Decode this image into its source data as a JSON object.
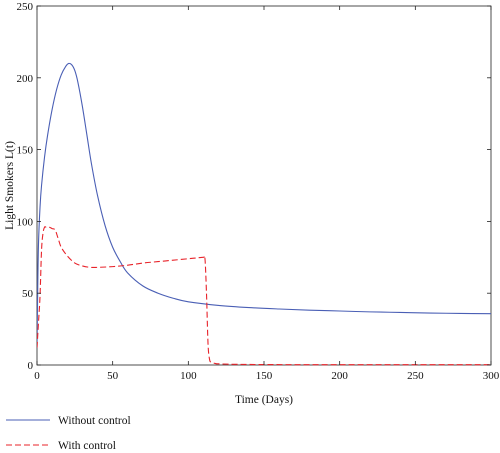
{
  "chart_data": {
    "type": "line",
    "title": "",
    "xlabel": "Time (Days)",
    "ylabel": "Light Smokers L(t)",
    "xlim": [
      0,
      300
    ],
    "ylim": [
      0,
      250
    ],
    "xticks": [
      0,
      50,
      100,
      150,
      200,
      250,
      300
    ],
    "yticks": [
      0,
      50,
      100,
      150,
      200,
      250
    ],
    "grid": false,
    "legend_position": "bottom-left, below plot",
    "series": [
      {
        "name": "Without control",
        "color": "#4a5fb5",
        "style": "solid",
        "x": [
          0,
          0.5,
          1,
          2,
          3,
          5,
          7,
          10,
          13,
          16,
          19,
          21,
          23,
          25,
          27,
          30,
          33,
          36,
          40,
          45,
          50,
          55,
          60,
          70,
          80,
          90,
          100,
          120,
          140,
          160,
          180,
          200,
          220,
          240,
          260,
          280,
          300
        ],
        "values": [
          12,
          55,
          85,
          110,
          125,
          145,
          160,
          178,
          192,
          202,
          208,
          210,
          209,
          205,
          197,
          180,
          160,
          140,
          118,
          97,
          82,
          72,
          64,
          55,
          50,
          46.5,
          44,
          41.5,
          40,
          39,
          38.2,
          37.6,
          37,
          36.6,
          36.2,
          35.9,
          35.7
        ]
      },
      {
        "name": "With control",
        "color": "#e8232a",
        "style": "dashed",
        "x": [
          0,
          1,
          2,
          3,
          4,
          5,
          6,
          8,
          10,
          12,
          14,
          16,
          20,
          25,
          30,
          35,
          40,
          50,
          60,
          70,
          80,
          90,
          100,
          105,
          110,
          111,
          112,
          113,
          114,
          115,
          118,
          120,
          130,
          150,
          200,
          250,
          300
        ],
        "values": [
          12,
          30,
          48,
          80,
          92,
          96,
          96,
          96,
          95,
          94,
          88,
          82,
          76,
          71,
          69,
          68,
          68,
          68.5,
          69.5,
          71,
          72,
          73,
          74,
          74.5,
          75,
          74,
          50,
          15,
          4,
          2,
          1,
          0.8,
          0.5,
          0.3,
          0.2,
          0.2,
          0.2
        ]
      }
    ]
  }
}
